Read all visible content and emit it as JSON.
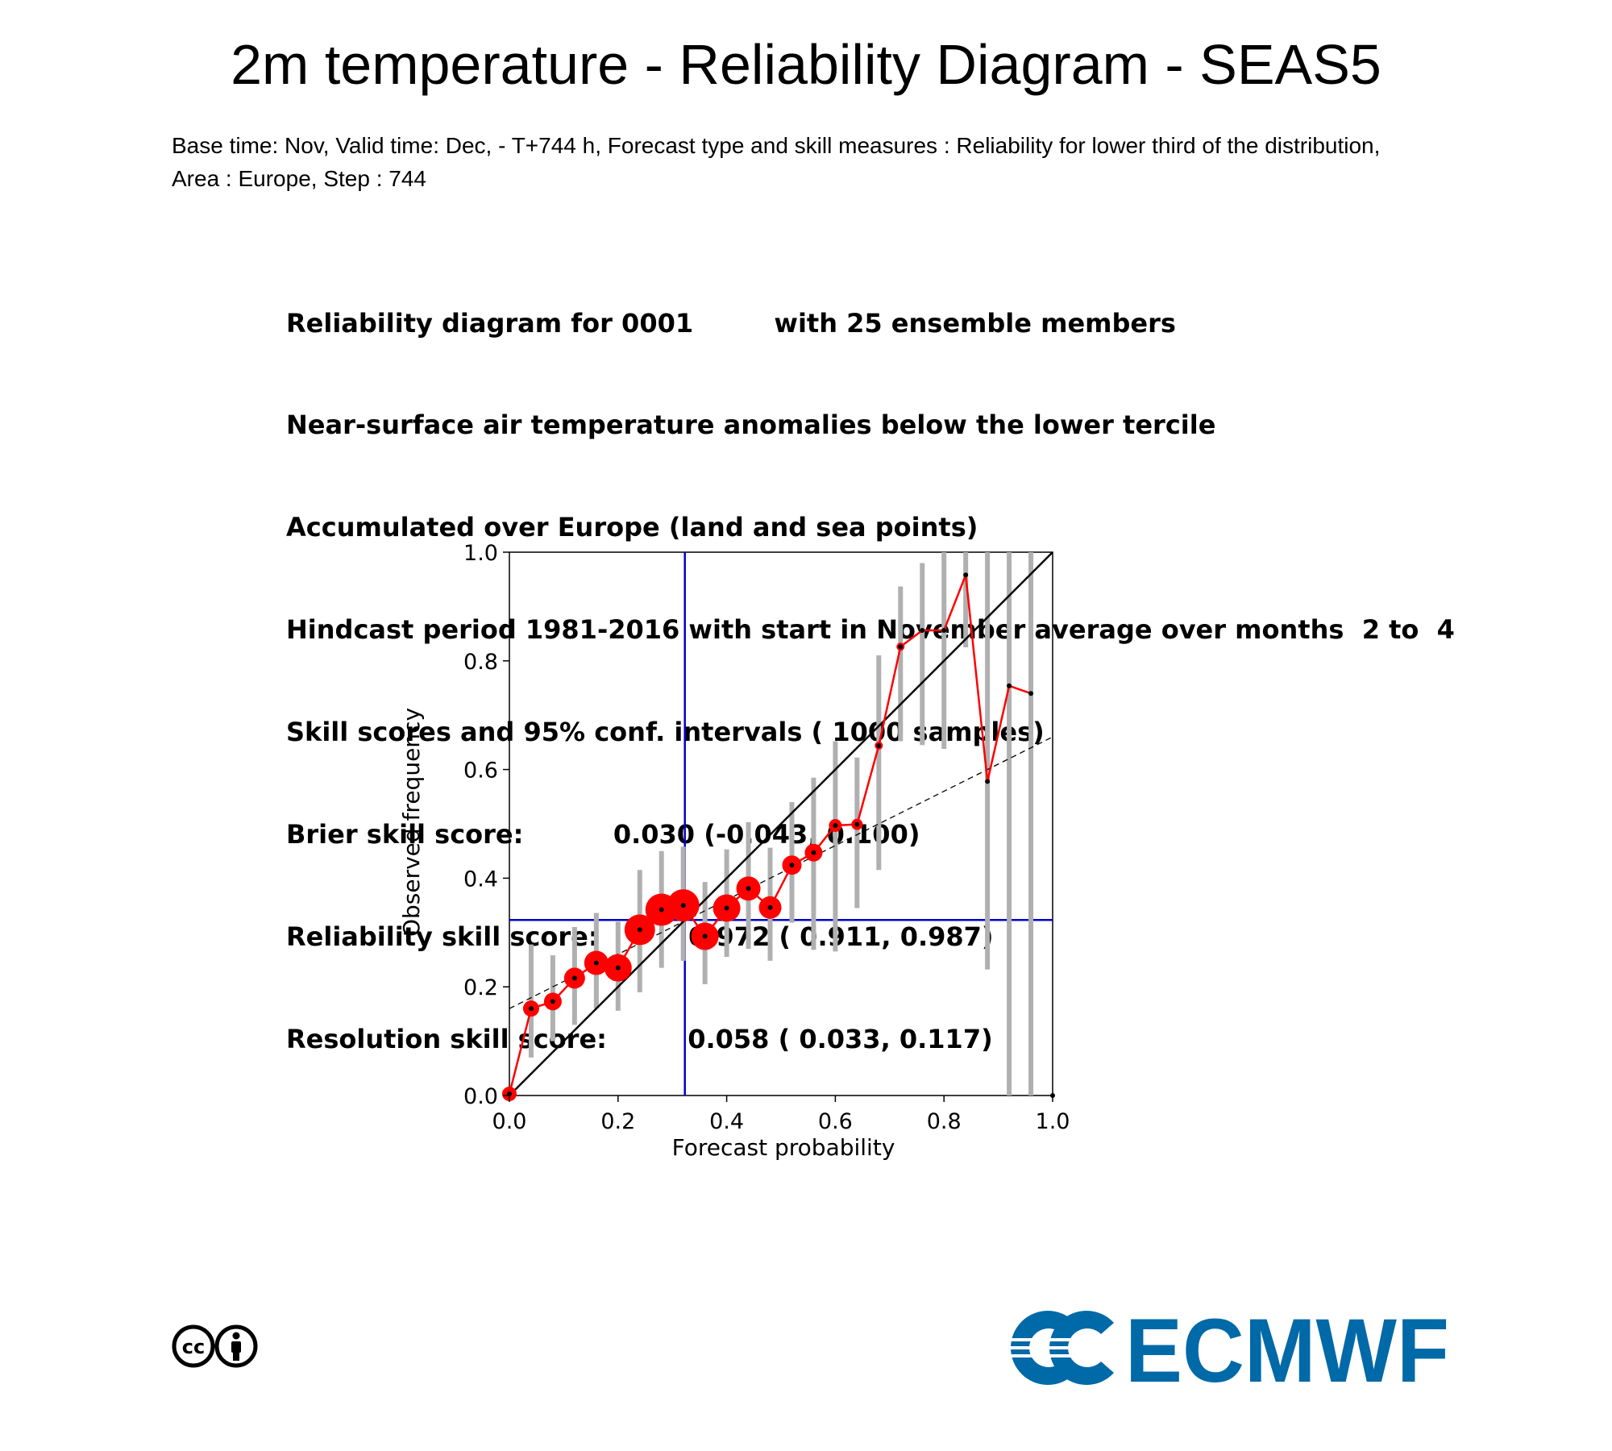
{
  "header": {
    "title": "2m temperature - Reliability Diagram - SEAS5",
    "subtitle_line1": "Base time: Nov, Valid time: Dec, - T+744 h, Forecast type and skill measures : Reliability for lower third of the distribution,",
    "subtitle_line2": "Area : Europe, Step : 744"
  },
  "info_lines": [
    "Reliability diagram for 0001         with 25 ensemble members",
    "Near-surface air temperature anomalies below the lower tercile",
    "Accumulated over Europe (land and sea points)",
    "Hindcast period 1981-2016 with start in November average over months  2 to  4",
    "Skill scores and 95% conf. intervals ( 1000 samples)",
    "Brier skill score:          0.030 (-0.043, 0.100)",
    "Reliability skill score:          0.972 ( 0.911, 0.987)",
    "Resolution skill score:         0.058 ( 0.033, 0.117)"
  ],
  "chart_data": {
    "type": "scatter",
    "xlabel": "Forecast probability",
    "ylabel": "Observed frequency",
    "xlim": [
      0,
      1
    ],
    "ylim": [
      0,
      1
    ],
    "xticks": [
      "0.0",
      "0.2",
      "0.4",
      "0.6",
      "0.8",
      "1.0"
    ],
    "yticks": [
      "0.0",
      "0.2",
      "0.4",
      "0.6",
      "0.8",
      "1.0"
    ],
    "climatology": 0.323,
    "regression": {
      "y_at_0": 0.16,
      "y_at_1": 0.66
    },
    "points": [
      {
        "x": 0.0,
        "y": 0.003,
        "lo": null,
        "hi": null,
        "size": 9
      },
      {
        "x": 0.04,
        "y": 0.16,
        "lo": 0.07,
        "hi": 0.278,
        "size": 10
      },
      {
        "x": 0.08,
        "y": 0.173,
        "lo": 0.1,
        "hi": 0.258,
        "size": 11
      },
      {
        "x": 0.12,
        "y": 0.216,
        "lo": 0.13,
        "hi": 0.31,
        "size": 13
      },
      {
        "x": 0.16,
        "y": 0.244,
        "lo": 0.16,
        "hi": 0.336,
        "size": 15
      },
      {
        "x": 0.2,
        "y": 0.235,
        "lo": 0.156,
        "hi": 0.32,
        "size": 17
      },
      {
        "x": 0.24,
        "y": 0.305,
        "lo": 0.19,
        "hi": 0.415,
        "size": 19
      },
      {
        "x": 0.28,
        "y": 0.342,
        "lo": 0.235,
        "hi": 0.45,
        "size": 20
      },
      {
        "x": 0.32,
        "y": 0.35,
        "lo": 0.248,
        "hi": 0.458,
        "size": 20
      },
      {
        "x": 0.36,
        "y": 0.293,
        "lo": 0.205,
        "hi": 0.393,
        "size": 17
      },
      {
        "x": 0.4,
        "y": 0.345,
        "lo": 0.255,
        "hi": 0.453,
        "size": 17
      },
      {
        "x": 0.44,
        "y": 0.381,
        "lo": 0.27,
        "hi": 0.503,
        "size": 15
      },
      {
        "x": 0.48,
        "y": 0.346,
        "lo": 0.248,
        "hi": 0.456,
        "size": 14
      },
      {
        "x": 0.52,
        "y": 0.424,
        "lo": 0.318,
        "hi": 0.54,
        "size": 12
      },
      {
        "x": 0.56,
        "y": 0.447,
        "lo": 0.268,
        "hi": 0.585,
        "size": 11
      },
      {
        "x": 0.6,
        "y": 0.497,
        "lo": 0.265,
        "hi": 0.652,
        "size": 8
      },
      {
        "x": 0.64,
        "y": 0.499,
        "lo": 0.345,
        "hi": 0.622,
        "size": 7
      },
      {
        "x": 0.68,
        "y": 0.644,
        "lo": 0.415,
        "hi": 0.81,
        "size": 5
      },
      {
        "x": 0.72,
        "y": 0.826,
        "lo": 0.652,
        "hi": 0.937,
        "size": 5
      },
      {
        "x": 0.76,
        "y": 0.856,
        "lo": 0.645,
        "hi": 0.98,
        "size": 4
      },
      {
        "x": 0.8,
        "y": 0.856,
        "lo": 0.638,
        "hi": 1.0,
        "size": 3
      },
      {
        "x": 0.84,
        "y": 0.958,
        "lo": 0.825,
        "hi": 1.0,
        "size": 3
      },
      {
        "x": 0.88,
        "y": 0.578,
        "lo": 0.232,
        "hi": 1.0,
        "size": 3
      },
      {
        "x": 0.92,
        "y": 0.754,
        "lo": 0.0,
        "hi": 1.0,
        "size": 3
      },
      {
        "x": 0.96,
        "y": 0.74,
        "lo": 0.0,
        "hi": 1.0,
        "size": 3
      },
      {
        "x": 1.0,
        "y": 0.0,
        "lo": null,
        "hi": null,
        "size": 3
      }
    ],
    "colors": {
      "reliability_line": "#ff0000",
      "bubble": "#ff0000",
      "ci_bar": "#b0b0b0",
      "climatology": "#0000cc",
      "diagonal": "#000000",
      "regression": "#000000"
    }
  },
  "footer": {
    "logo_text": "ECMWF",
    "logo_color": "#0069a8",
    "license_icon": "creative-commons-by-icon"
  }
}
